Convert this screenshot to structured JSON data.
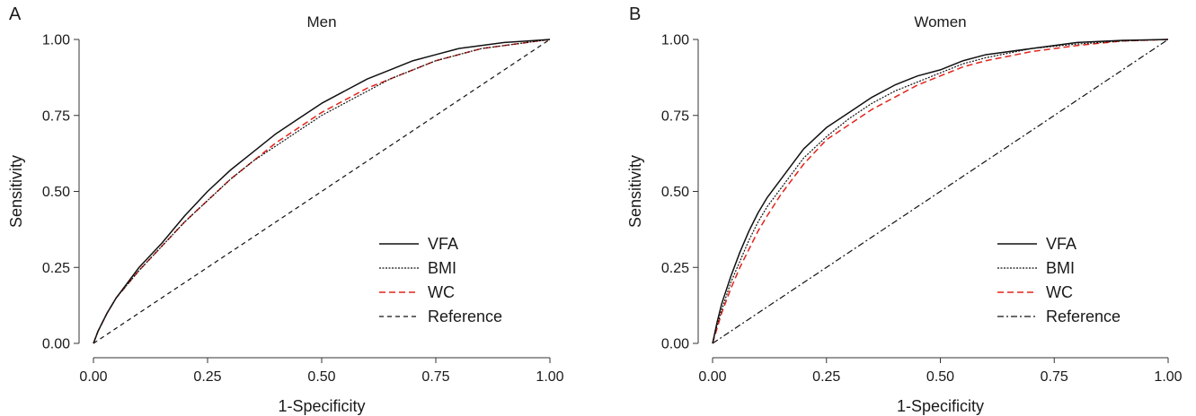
{
  "colors": {
    "vfa": "#111111",
    "bmi": "#111111",
    "wc": "#e2231a",
    "reference": "#111111"
  },
  "chart_data": [
    {
      "type": "line",
      "panel_letter": "A",
      "title": "Men",
      "xlabel": "1-Specificity",
      "ylabel": "Sensitivity",
      "xlim": [
        0,
        1
      ],
      "ylim": [
        0,
        1
      ],
      "x_ticks": [
        "0.00",
        "0.25",
        "0.50",
        "0.75",
        "1.00"
      ],
      "y_ticks": [
        "0.00",
        "0.25",
        "0.50",
        "0.75",
        "1.00"
      ],
      "grid": false,
      "legend_position": "bottom-right",
      "series": [
        {
          "name": "VFA",
          "style": "solid",
          "points": [
            [
              0,
              0
            ],
            [
              0.01,
              0.04
            ],
            [
              0.03,
              0.1
            ],
            [
              0.05,
              0.15
            ],
            [
              0.1,
              0.25
            ],
            [
              0.15,
              0.33
            ],
            [
              0.2,
              0.42
            ],
            [
              0.25,
              0.5
            ],
            [
              0.3,
              0.57
            ],
            [
              0.35,
              0.63
            ],
            [
              0.4,
              0.69
            ],
            [
              0.45,
              0.74
            ],
            [
              0.5,
              0.79
            ],
            [
              0.55,
              0.83
            ],
            [
              0.6,
              0.87
            ],
            [
              0.65,
              0.9
            ],
            [
              0.7,
              0.93
            ],
            [
              0.75,
              0.95
            ],
            [
              0.8,
              0.97
            ],
            [
              0.85,
              0.98
            ],
            [
              0.9,
              0.99
            ],
            [
              0.95,
              0.995
            ],
            [
              1,
              1
            ]
          ]
        },
        {
          "name": "BMI",
          "style": "dotted",
          "points": [
            [
              0,
              0
            ],
            [
              0.01,
              0.04
            ],
            [
              0.03,
              0.1
            ],
            [
              0.05,
              0.15
            ],
            [
              0.1,
              0.24
            ],
            [
              0.15,
              0.32
            ],
            [
              0.2,
              0.4
            ],
            [
              0.25,
              0.47
            ],
            [
              0.3,
              0.54
            ],
            [
              0.35,
              0.6
            ],
            [
              0.4,
              0.65
            ],
            [
              0.45,
              0.7
            ],
            [
              0.5,
              0.75
            ],
            [
              0.55,
              0.79
            ],
            [
              0.6,
              0.83
            ],
            [
              0.65,
              0.87
            ],
            [
              0.7,
              0.9
            ],
            [
              0.75,
              0.93
            ],
            [
              0.8,
              0.95
            ],
            [
              0.85,
              0.97
            ],
            [
              0.9,
              0.98
            ],
            [
              0.95,
              0.99
            ],
            [
              1,
              1
            ]
          ]
        },
        {
          "name": "WC",
          "style": "dashed-red",
          "points": [
            [
              0,
              0
            ],
            [
              0.01,
              0.04
            ],
            [
              0.03,
              0.1
            ],
            [
              0.05,
              0.15
            ],
            [
              0.1,
              0.24
            ],
            [
              0.15,
              0.32
            ],
            [
              0.2,
              0.4
            ],
            [
              0.25,
              0.47
            ],
            [
              0.3,
              0.54
            ],
            [
              0.35,
              0.6
            ],
            [
              0.4,
              0.66
            ],
            [
              0.45,
              0.71
            ],
            [
              0.5,
              0.76
            ],
            [
              0.55,
              0.8
            ],
            [
              0.6,
              0.84
            ],
            [
              0.65,
              0.87
            ],
            [
              0.7,
              0.9
            ],
            [
              0.75,
              0.93
            ],
            [
              0.8,
              0.95
            ],
            [
              0.85,
              0.97
            ],
            [
              0.9,
              0.98
            ],
            [
              0.95,
              0.99
            ],
            [
              1,
              1
            ]
          ]
        },
        {
          "name": "Reference",
          "style": "dashed",
          "points": [
            [
              0,
              0
            ],
            [
              1,
              1
            ]
          ]
        }
      ]
    },
    {
      "type": "line",
      "panel_letter": "B",
      "title": "Women",
      "xlabel": "1-Specificity",
      "ylabel": "Sensitivity",
      "xlim": [
        0,
        1
      ],
      "ylim": [
        0,
        1
      ],
      "x_ticks": [
        "0.00",
        "0.25",
        "0.50",
        "0.75",
        "1.00"
      ],
      "y_ticks": [
        "0.00",
        "0.25",
        "0.50",
        "0.75",
        "1.00"
      ],
      "grid": false,
      "legend_position": "bottom-right",
      "series": [
        {
          "name": "VFA",
          "style": "solid",
          "points": [
            [
              0,
              0
            ],
            [
              0.01,
              0.07
            ],
            [
              0.02,
              0.13
            ],
            [
              0.04,
              0.22
            ],
            [
              0.06,
              0.3
            ],
            [
              0.08,
              0.37
            ],
            [
              0.1,
              0.43
            ],
            [
              0.12,
              0.48
            ],
            [
              0.15,
              0.54
            ],
            [
              0.18,
              0.6
            ],
            [
              0.2,
              0.64
            ],
            [
              0.25,
              0.71
            ],
            [
              0.3,
              0.76
            ],
            [
              0.35,
              0.81
            ],
            [
              0.4,
              0.85
            ],
            [
              0.45,
              0.88
            ],
            [
              0.5,
              0.9
            ],
            [
              0.55,
              0.93
            ],
            [
              0.6,
              0.95
            ],
            [
              0.7,
              0.97
            ],
            [
              0.8,
              0.99
            ],
            [
              0.9,
              0.997
            ],
            [
              1,
              1
            ]
          ]
        },
        {
          "name": "BMI",
          "style": "dotted",
          "points": [
            [
              0,
              0
            ],
            [
              0.01,
              0.06
            ],
            [
              0.02,
              0.11
            ],
            [
              0.04,
              0.2
            ],
            [
              0.06,
              0.27
            ],
            [
              0.08,
              0.34
            ],
            [
              0.1,
              0.4
            ],
            [
              0.12,
              0.45
            ],
            [
              0.15,
              0.51
            ],
            [
              0.18,
              0.57
            ],
            [
              0.2,
              0.61
            ],
            [
              0.25,
              0.68
            ],
            [
              0.3,
              0.74
            ],
            [
              0.35,
              0.79
            ],
            [
              0.4,
              0.83
            ],
            [
              0.45,
              0.86
            ],
            [
              0.5,
              0.89
            ],
            [
              0.55,
              0.92
            ],
            [
              0.6,
              0.94
            ],
            [
              0.7,
              0.97
            ],
            [
              0.8,
              0.985
            ],
            [
              0.9,
              0.995
            ],
            [
              1,
              1
            ]
          ]
        },
        {
          "name": "WC",
          "style": "dashed-red",
          "points": [
            [
              0,
              0
            ],
            [
              0.01,
              0.05
            ],
            [
              0.02,
              0.1
            ],
            [
              0.04,
              0.18
            ],
            [
              0.06,
              0.25
            ],
            [
              0.08,
              0.31
            ],
            [
              0.1,
              0.37
            ],
            [
              0.12,
              0.42
            ],
            [
              0.15,
              0.49
            ],
            [
              0.18,
              0.55
            ],
            [
              0.2,
              0.59
            ],
            [
              0.25,
              0.67
            ],
            [
              0.3,
              0.72
            ],
            [
              0.35,
              0.77
            ],
            [
              0.4,
              0.81
            ],
            [
              0.45,
              0.85
            ],
            [
              0.5,
              0.88
            ],
            [
              0.55,
              0.91
            ],
            [
              0.6,
              0.93
            ],
            [
              0.7,
              0.96
            ],
            [
              0.8,
              0.98
            ],
            [
              0.9,
              0.995
            ],
            [
              1,
              1
            ]
          ]
        },
        {
          "name": "Reference",
          "style": "dashdot",
          "points": [
            [
              0,
              0
            ],
            [
              1,
              1
            ]
          ]
        }
      ]
    }
  ]
}
